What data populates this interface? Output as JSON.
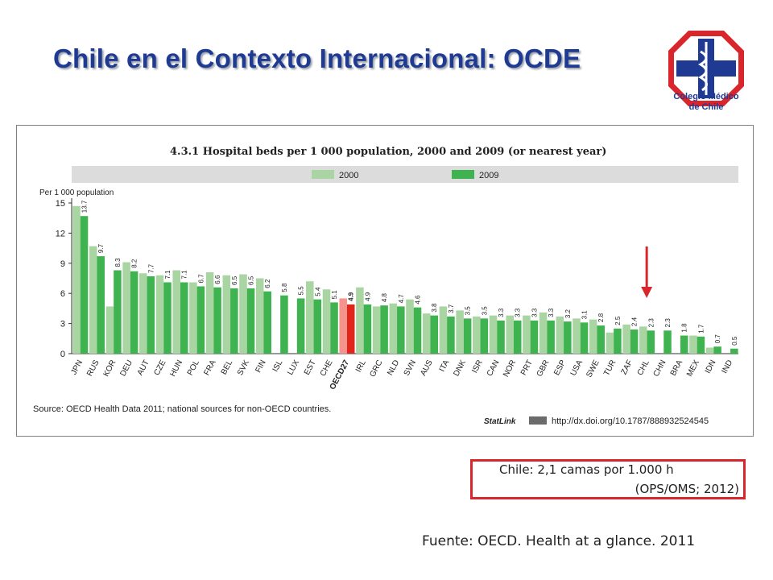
{
  "slide": {
    "title": "Chile en el Contexto Internacional: OCDE",
    "logo_text_line1": "Colegio Médico",
    "logo_text_line2": "de Chile",
    "note_line1": "Chile: 2,1 camas por 1.000 h",
    "note_line2": "(OPS/OMS; 2012)",
    "fuente": "Fuente: OECD. Health  at a glance.  2011",
    "colors": {
      "title": "#1f3a93",
      "logo_red": "#d9262d",
      "logo_blue": "#1f3a93",
      "arrow": "#d9262d",
      "note_border": "#d9262d"
    }
  },
  "chart_data": {
    "type": "bar",
    "title": "4.3.1  Hospital beds per 1 000 population, 2000 and 2009 (or nearest year)",
    "ylabel": "Per 1 000 population",
    "ylim": [
      0,
      15
    ],
    "yticks": [
      0,
      3,
      6,
      9,
      12,
      15
    ],
    "grid": false,
    "legend_position": "top",
    "source": "Source: OECD Health Data 2011; national sources for non-OECD countries.",
    "statlink_label": "StatLink",
    "statlink_url": "http://dx.doi.org/10.1787/888932524545",
    "categories": [
      "JPN",
      "RUS",
      "KOR",
      "DEU",
      "AUT",
      "CZE",
      "HUN",
      "POL",
      "FRA",
      "BEL",
      "SVK",
      "FIN",
      "ISL",
      "LUX",
      "EST",
      "CHE",
      "OECD27",
      "IRL",
      "GRC",
      "NLD",
      "SVN",
      "AUS",
      "ITA",
      "DNK",
      "ISR",
      "CAN",
      "NOR",
      "PRT",
      "GBR",
      "ESP",
      "USA",
      "SWE",
      "TUR",
      "ZAF",
      "CHL",
      "CHN",
      "BRA",
      "MEX",
      "IDN",
      "IND"
    ],
    "highlight_category": "OECD27",
    "series": [
      {
        "name": "2000",
        "color": "#a8d5a2",
        "highlight_color": "#f4948c",
        "values": [
          14.7,
          10.7,
          4.7,
          9.1,
          8.0,
          7.8,
          8.3,
          7.1,
          8.1,
          7.8,
          7.9,
          7.5,
          null,
          null,
          7.2,
          6.4,
          5.5,
          6.6,
          4.7,
          5.0,
          5.4,
          4.0,
          4.7,
          4.3,
          3.7,
          3.8,
          3.8,
          3.8,
          4.1,
          3.7,
          3.5,
          3.4,
          2.1,
          2.9,
          2.7,
          null,
          null,
          1.8,
          0.6,
          null
        ]
      },
      {
        "name": "2009",
        "color": "#3fb34f",
        "highlight_color": "#e1251b",
        "values": [
          13.7,
          9.7,
          8.3,
          8.2,
          7.7,
          7.1,
          7.1,
          6.7,
          6.6,
          6.5,
          6.5,
          6.2,
          5.8,
          5.5,
          5.4,
          5.1,
          4.9,
          4.9,
          4.8,
          4.7,
          4.6,
          3.8,
          3.7,
          3.5,
          3.5,
          3.3,
          3.3,
          3.3,
          3.3,
          3.2,
          3.1,
          2.8,
          2.5,
          2.4,
          2.3,
          2.3,
          1.8,
          1.7,
          0.7,
          0.5
        ]
      }
    ],
    "data_labels": [
      "13.7",
      "9.7",
      "8.3",
      "8.2",
      "7.7",
      "7.1",
      "7.1",
      "6.7",
      "6.6",
      "6.5",
      "6.5",
      "6.2",
      "5.8",
      "5.5",
      "5.4",
      "5.1",
      "4.9",
      "4.9",
      "4.8",
      "4.7",
      "4.6",
      "3.8",
      "3.7",
      "3.5",
      "3.5",
      "3.3",
      "3.3",
      "3.3",
      "3.3",
      "3.2",
      "3.1",
      "2.8",
      "2.5",
      "2.4",
      "2.3",
      "2.3",
      "1.8",
      "1.7",
      "0.7",
      "0.5"
    ],
    "annotation": {
      "type": "arrow",
      "points_to": "CHL"
    }
  }
}
